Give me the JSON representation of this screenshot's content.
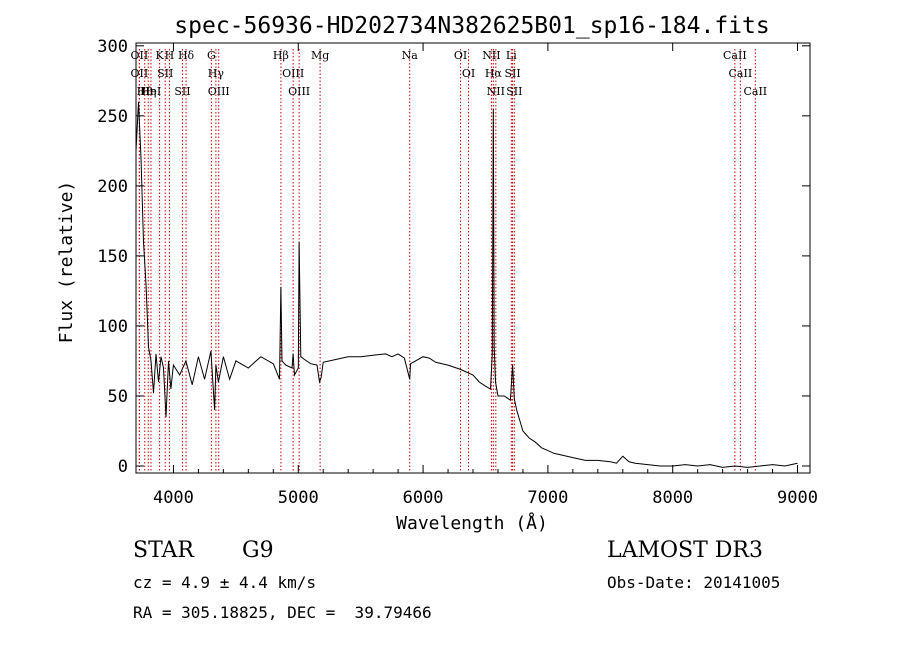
{
  "chart_data": {
    "type": "line",
    "title": "spec-56936-HD202734N382625B01_sp16-184.fits",
    "xlabel": "Wavelength (Å)",
    "ylabel": "Flux (relative)",
    "xlim": [
      3700,
      9100
    ],
    "ylim": [
      -5,
      302
    ],
    "xticks": [
      4000,
      5000,
      6000,
      7000,
      8000,
      9000
    ],
    "yticks": [
      0,
      50,
      100,
      150,
      200,
      250,
      300
    ],
    "series": [
      {
        "name": "spectrum",
        "x": [
          3700,
          3720,
          3740,
          3760,
          3780,
          3800,
          3820,
          3840,
          3860,
          3880,
          3900,
          3920,
          3940,
          3960,
          3980,
          4000,
          4050,
          4100,
          4150,
          4200,
          4250,
          4300,
          4330,
          4340,
          4360,
          4400,
          4450,
          4500,
          4600,
          4700,
          4800,
          4850,
          4861,
          4870,
          4900,
          4950,
          4959,
          4970,
          5000,
          5007,
          5020,
          5050,
          5100,
          5150,
          5170,
          5183,
          5200,
          5300,
          5400,
          5500,
          5600,
          5700,
          5750,
          5800,
          5850,
          5893,
          5900,
          6000,
          6050,
          6100,
          6200,
          6300,
          6400,
          6450,
          6500,
          6540,
          6555,
          6563,
          6570,
          6580,
          6600,
          6650,
          6700,
          6717,
          6731,
          6750,
          6800,
          6850,
          6900,
          6950,
          7000,
          7050,
          7100,
          7200,
          7300,
          7400,
          7500,
          7550,
          7600,
          7650,
          7700,
          7800,
          7900,
          8000,
          8100,
          8200,
          8300,
          8400,
          8500,
          8600,
          8700,
          8800,
          8900,
          9000
        ],
        "values": [
          225,
          260,
          220,
          160,
          130,
          85,
          75,
          52,
          80,
          60,
          78,
          70,
          35,
          75,
          55,
          72,
          65,
          75,
          58,
          78,
          62,
          82,
          40,
          72,
          60,
          78,
          62,
          75,
          70,
          78,
          73,
          62,
          128,
          75,
          72,
          70,
          80,
          65,
          70,
          160,
          78,
          76,
          73,
          72,
          60,
          63,
          74,
          76,
          78,
          78,
          79,
          80,
          78,
          80,
          77,
          62,
          73,
          78,
          77,
          74,
          72,
          69,
          65,
          60,
          57,
          55,
          80,
          255,
          85,
          60,
          50,
          50,
          47,
          72,
          48,
          40,
          25,
          20,
          17,
          13,
          11,
          9,
          8,
          6,
          4,
          4,
          3,
          2,
          7,
          3,
          2,
          1,
          0,
          0,
          1,
          0,
          1,
          -1,
          0,
          -1,
          0,
          1,
          0,
          2
        ]
      }
    ],
    "lines": [
      {
        "wave": 3727,
        "label": "OII"
      },
      {
        "wave": 3727,
        "label": "OII"
      },
      {
        "wave": 3770,
        "label": "Hθ"
      },
      {
        "wave": 3798,
        "label": "Hη"
      },
      {
        "wave": 3820,
        "label": "HeI"
      },
      {
        "wave": 3889,
        "label": "K"
      },
      {
        "wave": 3934,
        "label": "SII"
      },
      {
        "wave": 3968,
        "label": "H"
      },
      {
        "wave": 4101,
        "label": "Hδ"
      },
      {
        "wave": 4072,
        "label": "SII"
      },
      {
        "wave": 4304,
        "label": "G"
      },
      {
        "wave": 4340,
        "label": "Hγ"
      },
      {
        "wave": 4363,
        "label": "OIII"
      },
      {
        "wave": 4861,
        "label": "Hβ"
      },
      {
        "wave": 4959,
        "label": "OIII"
      },
      {
        "wave": 5007,
        "label": "OIII"
      },
      {
        "wave": 5175,
        "label": "Mg"
      },
      {
        "wave": 5893,
        "label": "Na"
      },
      {
        "wave": 6300,
        "label": "OI"
      },
      {
        "wave": 6364,
        "label": "OI"
      },
      {
        "wave": 6548,
        "label": "NII"
      },
      {
        "wave": 6563,
        "label": "Hα"
      },
      {
        "wave": 6583,
        "label": "NII"
      },
      {
        "wave": 6707,
        "label": "Li"
      },
      {
        "wave": 6717,
        "label": "SII"
      },
      {
        "wave": 6731,
        "label": "SII"
      },
      {
        "wave": 8498,
        "label": "CaII"
      },
      {
        "wave": 8542,
        "label": "CaII"
      },
      {
        "wave": 8662,
        "label": "CaII"
      }
    ]
  },
  "info": {
    "object_class": "STAR",
    "subclass": "G9",
    "survey": "LAMOST DR3",
    "cz": "cz = 4.9 ± 4.4 km/s",
    "obs_date": "Obs-Date: 20141005",
    "coords": "RA = 305.18825, DEC =  39.79466"
  }
}
